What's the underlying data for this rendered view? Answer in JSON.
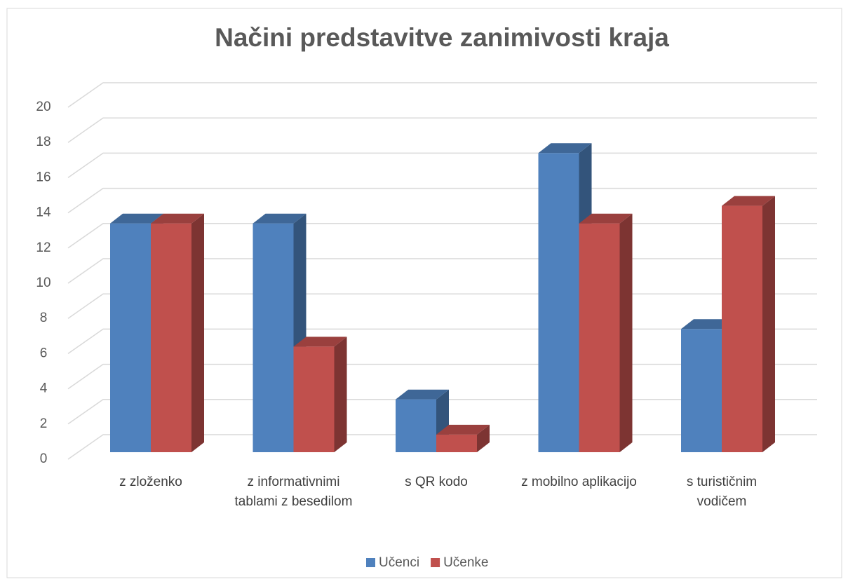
{
  "chart_data": {
    "type": "bar3d",
    "title": "Načini predstavitve zanimivosti kraja",
    "categories": [
      "z zloženko",
      "z informativnimi tablami z besedilom",
      "s QR kodo",
      "z mobilno aplikacijo",
      "s turističnim vodičem"
    ],
    "series": [
      {
        "name": "Učenci",
        "color": "#4f81bd",
        "values": [
          13,
          13,
          3,
          17,
          7
        ]
      },
      {
        "name": "Učenke",
        "color": "#c0504d",
        "values": [
          13,
          6,
          1,
          13,
          14
        ]
      }
    ],
    "ylim": [
      0,
      20
    ],
    "yticks": [
      0,
      2,
      4,
      6,
      8,
      10,
      12,
      14,
      16,
      18,
      20
    ],
    "grid": true,
    "legend": "bottom"
  }
}
